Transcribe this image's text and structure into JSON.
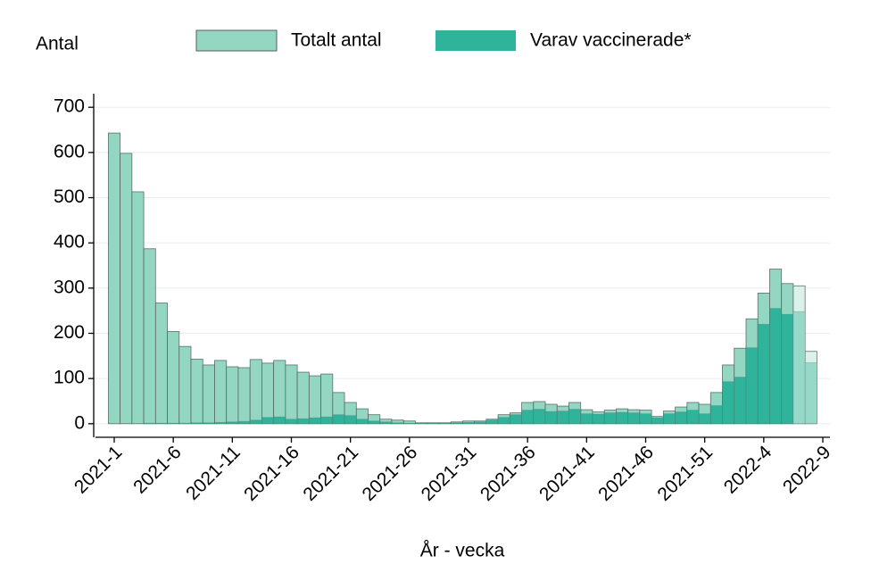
{
  "chart_data": {
    "type": "bar",
    "y_label": "Antal",
    "x_label": "År - vecka",
    "categories": [
      "2021-1",
      null,
      null,
      null,
      null,
      "2021-6",
      null,
      null,
      null,
      null,
      "2021-11",
      null,
      null,
      null,
      null,
      "2021-16",
      null,
      null,
      null,
      null,
      "2021-21",
      null,
      null,
      null,
      null,
      "2021-26",
      null,
      null,
      null,
      null,
      "2021-31",
      null,
      null,
      null,
      null,
      "2021-36",
      null,
      null,
      null,
      null,
      "2021-41",
      null,
      null,
      null,
      null,
      "2021-46",
      null,
      null,
      null,
      null,
      "2021-51",
      null,
      null,
      null,
      null,
      "2022-4",
      null,
      null,
      null,
      null,
      "2022-9"
    ],
    "series": [
      {
        "name": "Totalt antal",
        "color": "#93d6c2",
        "colors": [
          "#93d6c2",
          "#93d6c2",
          "#93d6c2",
          "#93d6c2",
          "#93d6c2",
          "#93d6c2",
          "#93d6c2",
          "#93d6c2",
          "#93d6c2",
          "#93d6c2",
          "#93d6c2",
          "#93d6c2",
          "#93d6c2",
          "#93d6c2",
          "#93d6c2",
          "#93d6c2",
          "#93d6c2",
          "#93d6c2",
          "#93d6c2",
          "#93d6c2",
          "#93d6c2",
          "#93d6c2",
          "#93d6c2",
          "#93d6c2",
          "#93d6c2",
          "#93d6c2",
          "#93d6c2",
          "#93d6c2",
          "#93d6c2",
          "#93d6c2",
          "#93d6c2",
          "#93d6c2",
          "#93d6c2",
          "#93d6c2",
          "#93d6c2",
          "#93d6c2",
          "#93d6c2",
          "#93d6c2",
          "#93d6c2",
          "#93d6c2",
          "#93d6c2",
          "#93d6c2",
          "#93d6c2",
          "#93d6c2",
          "#93d6c2",
          "#93d6c2",
          "#93d6c2",
          "#93d6c2",
          "#93d6c2",
          "#93d6c2",
          "#93d6c2",
          "#93d6c2",
          "#93d6c2",
          "#93d6c2",
          "#93d6c2",
          "#93d6c2",
          "#93d6c2",
          "#93d6c2",
          "#dbf1ea",
          "#dbf1ea",
          "#dbf1ea"
        ],
        "values": [
          643,
          598,
          513,
          387,
          267,
          204,
          171,
          143,
          130,
          140,
          126,
          124,
          142,
          134,
          140,
          130,
          114,
          106,
          110,
          69,
          47,
          33,
          20,
          10,
          8,
          6,
          2,
          2,
          2,
          4,
          6,
          6,
          10,
          20,
          24,
          47,
          49,
          43,
          39,
          47,
          31,
          26,
          30,
          33,
          31,
          30,
          16,
          28,
          37,
          47,
          43,
          69,
          130,
          167,
          232,
          289,
          342,
          310,
          305,
          160,
          null
        ]
      },
      {
        "name": "Varav vaccinerade*",
        "color": "#2fb39a",
        "colors": [
          "#2fb39a",
          "#2fb39a",
          "#2fb39a",
          "#2fb39a",
          "#2fb39a",
          "#2fb39a",
          "#2fb39a",
          "#2fb39a",
          "#2fb39a",
          "#2fb39a",
          "#2fb39a",
          "#2fb39a",
          "#2fb39a",
          "#2fb39a",
          "#2fb39a",
          "#2fb39a",
          "#2fb39a",
          "#2fb39a",
          "#2fb39a",
          "#2fb39a",
          "#2fb39a",
          "#2fb39a",
          "#2fb39a",
          "#2fb39a",
          "#2fb39a",
          "#2fb39a",
          "#2fb39a",
          "#2fb39a",
          "#2fb39a",
          "#2fb39a",
          "#2fb39a",
          "#2fb39a",
          "#2fb39a",
          "#2fb39a",
          "#2fb39a",
          "#2fb39a",
          "#2fb39a",
          "#2fb39a",
          "#2fb39a",
          "#2fb39a",
          "#2fb39a",
          "#2fb39a",
          "#2fb39a",
          "#2fb39a",
          "#2fb39a",
          "#2fb39a",
          "#2fb39a",
          "#2fb39a",
          "#2fb39a",
          "#2fb39a",
          "#2fb39a",
          "#2fb39a",
          "#2fb39a",
          "#2fb39a",
          "#2fb39a",
          "#2fb39a",
          "#2fb39a",
          "#2fb39a",
          "#97d9c8",
          "#97d9c8",
          "#97d9c8"
        ],
        "values": [
          0,
          0,
          0,
          1,
          1,
          1,
          1,
          2,
          2,
          3,
          4,
          5,
          8,
          14,
          15,
          10,
          11,
          13,
          15,
          20,
          18,
          10,
          6,
          4,
          2,
          1,
          1,
          1,
          1,
          2,
          3,
          4,
          8,
          14,
          20,
          30,
          32,
          27,
          28,
          32,
          22,
          21,
          24,
          25,
          24,
          22,
          13,
          22,
          26,
          30,
          22,
          40,
          93,
          103,
          168,
          220,
          255,
          242,
          248,
          135,
          null
        ]
      }
    ],
    "ylim": [
      -30,
      730
    ],
    "yticks": [
      0,
      100,
      200,
      300,
      400,
      500,
      600,
      700
    ],
    "grid": true
  }
}
